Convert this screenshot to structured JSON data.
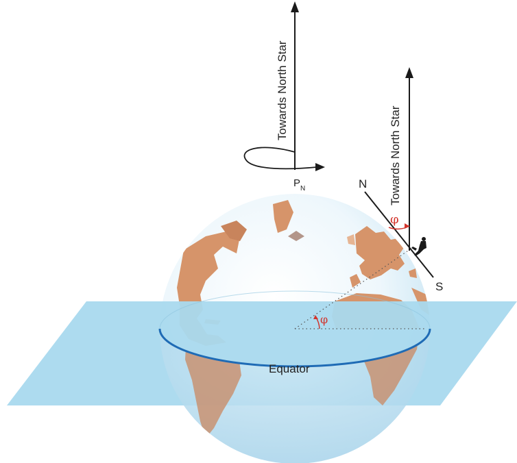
{
  "labels": {
    "north_star_left": "Towards North Star",
    "north_star_right": "Towards North Star",
    "pole_p": "P",
    "pole_sub": "N",
    "north": "N",
    "south": "S",
    "latitude_top": "φ",
    "latitude_center": "φ",
    "equator": "Equator"
  },
  "colors": {
    "plane": "#a9d9ee",
    "globe_light": "#f4fafd",
    "globe_edge": "#bfe1f1",
    "land": "#d6946a",
    "land_dark": "#b97650",
    "equator": "#1f6bb5",
    "arrow": "#1a1a1a",
    "accent_red": "#d2332b"
  },
  "icons": {
    "observer": "person-silhouette-icon"
  }
}
